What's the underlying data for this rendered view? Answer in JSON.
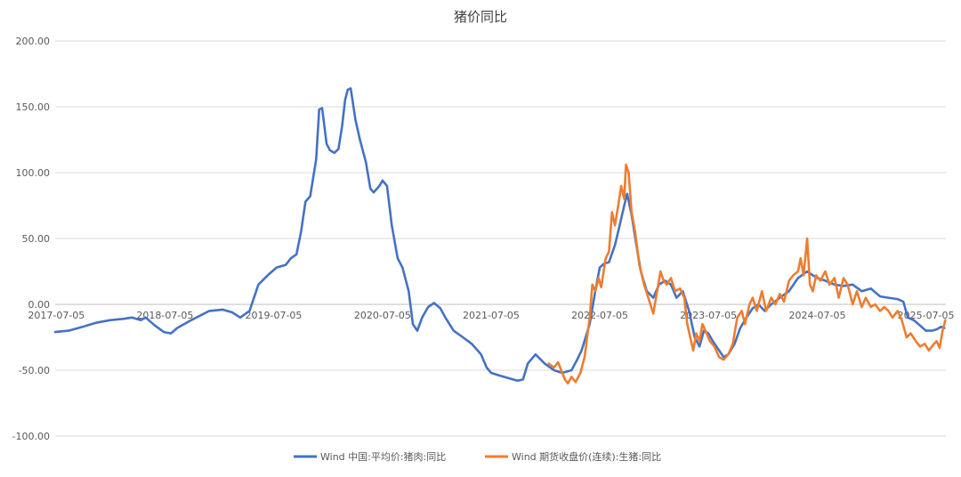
{
  "chart_data": {
    "type": "line",
    "title": "猪价同比",
    "ylim": [
      -100,
      200
    ],
    "y_ticks": [
      {
        "value": 200,
        "label": "200.00"
      },
      {
        "value": 150,
        "label": "150.00"
      },
      {
        "value": 100,
        "label": "100.00"
      },
      {
        "value": 50,
        "label": "50.00"
      },
      {
        "value": 0,
        "label": "0.00"
      },
      {
        "value": -50,
        "label": "-50.00"
      },
      {
        "value": -100,
        "label": "-100.00"
      }
    ],
    "x_range": [
      "2017-07-01",
      "2025-09-10"
    ],
    "x_ticks": [
      "2017-07-05",
      "2018-07-05",
      "2019-07-05",
      "2020-07-05",
      "2021-07-05",
      "2022-07-05",
      "2023-07-05",
      "2024-07-05",
      "2025-07-05"
    ],
    "grid": true,
    "legend_position": "bottom",
    "series": [
      {
        "name": "Wind 中国:平均价:猪肉:同比",
        "color": "#4472C4",
        "points": [
          [
            "2017-07-01",
            -21
          ],
          [
            "2017-08-15",
            -20
          ],
          [
            "2017-10-01",
            -17
          ],
          [
            "2017-11-15",
            -14
          ],
          [
            "2018-01-01",
            -12
          ],
          [
            "2018-02-15",
            -11
          ],
          [
            "2018-03-15",
            -10
          ],
          [
            "2018-04-15",
            -12
          ],
          [
            "2018-05-01",
            -10
          ],
          [
            "2018-06-01",
            -16
          ],
          [
            "2018-07-01",
            -21
          ],
          [
            "2018-07-25",
            -22
          ],
          [
            "2018-08-15",
            -18
          ],
          [
            "2018-10-01",
            -12
          ],
          [
            "2018-12-01",
            -5
          ],
          [
            "2019-01-15",
            -4
          ],
          [
            "2019-02-15",
            -6
          ],
          [
            "2019-03-15",
            -10
          ],
          [
            "2019-04-15",
            -5
          ],
          [
            "2019-05-15",
            15
          ],
          [
            "2019-06-15",
            22
          ],
          [
            "2019-07-15",
            28
          ],
          [
            "2019-08-15",
            30
          ],
          [
            "2019-09-01",
            35
          ],
          [
            "2019-09-20",
            38
          ],
          [
            "2019-10-05",
            55
          ],
          [
            "2019-10-20",
            78
          ],
          [
            "2019-11-05",
            82
          ],
          [
            "2019-11-25",
            110
          ],
          [
            "2019-12-05",
            148
          ],
          [
            "2019-12-15",
            149
          ],
          [
            "2019-12-30",
            122
          ],
          [
            "2020-01-10",
            117
          ],
          [
            "2020-01-25",
            115
          ],
          [
            "2020-02-08",
            118
          ],
          [
            "2020-02-20",
            135
          ],
          [
            "2020-03-01",
            155
          ],
          [
            "2020-03-10",
            163
          ],
          [
            "2020-03-20",
            164
          ],
          [
            "2020-04-05",
            140
          ],
          [
            "2020-04-20",
            125
          ],
          [
            "2020-05-10",
            108
          ],
          [
            "2020-05-25",
            88
          ],
          [
            "2020-06-05",
            85
          ],
          [
            "2020-06-25",
            90
          ],
          [
            "2020-07-05",
            94
          ],
          [
            "2020-07-20",
            90
          ],
          [
            "2020-08-05",
            60
          ],
          [
            "2020-08-25",
            35
          ],
          [
            "2020-09-10",
            28
          ],
          [
            "2020-10-01",
            10
          ],
          [
            "2020-10-15",
            -15
          ],
          [
            "2020-10-30",
            -20
          ],
          [
            "2020-11-15",
            -10
          ],
          [
            "2020-12-05",
            -2
          ],
          [
            "2020-12-25",
            1
          ],
          [
            "2021-01-15",
            -3
          ],
          [
            "2021-02-01",
            -10
          ],
          [
            "2021-03-01",
            -20
          ],
          [
            "2021-04-01",
            -25
          ],
          [
            "2021-05-01",
            -30
          ],
          [
            "2021-06-01",
            -38
          ],
          [
            "2021-06-20",
            -48
          ],
          [
            "2021-07-05",
            -52
          ],
          [
            "2021-08-01",
            -54
          ],
          [
            "2021-09-01",
            -56
          ],
          [
            "2021-10-01",
            -58
          ],
          [
            "2021-10-20",
            -57
          ],
          [
            "2021-11-05",
            -45
          ],
          [
            "2021-12-01",
            -38
          ],
          [
            "2022-01-01",
            -45
          ],
          [
            "2022-02-01",
            -50
          ],
          [
            "2022-03-01",
            -52
          ],
          [
            "2022-04-01",
            -50
          ],
          [
            "2022-04-20",
            -42
          ],
          [
            "2022-05-05",
            -35
          ],
          [
            "2022-06-01",
            -15
          ],
          [
            "2022-06-20",
            10
          ],
          [
            "2022-07-05",
            28
          ],
          [
            "2022-07-20",
            31
          ],
          [
            "2022-08-05",
            32
          ],
          [
            "2022-08-25",
            45
          ],
          [
            "2022-09-10",
            60
          ],
          [
            "2022-09-25",
            75
          ],
          [
            "2022-10-05",
            84
          ],
          [
            "2022-10-20",
            68
          ],
          [
            "2022-11-05",
            45
          ],
          [
            "2022-11-20",
            25
          ],
          [
            "2022-12-10",
            10
          ],
          [
            "2023-01-01",
            5
          ],
          [
            "2023-01-20",
            15
          ],
          [
            "2023-02-10",
            18
          ],
          [
            "2023-03-01",
            15
          ],
          [
            "2023-03-20",
            5
          ],
          [
            "2023-04-10",
            10
          ],
          [
            "2023-05-01",
            -5
          ],
          [
            "2023-05-20",
            -25
          ],
          [
            "2023-06-05",
            -32
          ],
          [
            "2023-06-20",
            -20
          ],
          [
            "2023-07-05",
            -22
          ],
          [
            "2023-07-20",
            -28
          ],
          [
            "2023-08-10",
            -35
          ],
          [
            "2023-08-25",
            -40
          ],
          [
            "2023-09-10",
            -38
          ],
          [
            "2023-10-01",
            -30
          ],
          [
            "2023-10-20",
            -18
          ],
          [
            "2023-11-10",
            -10
          ],
          [
            "2023-12-01",
            -3
          ],
          [
            "2023-12-20",
            0
          ],
          [
            "2024-01-10",
            -5
          ],
          [
            "2024-02-01",
            0
          ],
          [
            "2024-03-01",
            5
          ],
          [
            "2024-04-01",
            10
          ],
          [
            "2024-05-01",
            20
          ],
          [
            "2024-06-01",
            25
          ],
          [
            "2024-06-20",
            22
          ],
          [
            "2024-07-05",
            20
          ],
          [
            "2024-08-01",
            18
          ],
          [
            "2024-09-01",
            15
          ],
          [
            "2024-10-01",
            14
          ],
          [
            "2024-11-01",
            15
          ],
          [
            "2024-12-01",
            10
          ],
          [
            "2025-01-01",
            12
          ],
          [
            "2025-02-01",
            6
          ],
          [
            "2025-03-01",
            5
          ],
          [
            "2025-04-01",
            4
          ],
          [
            "2025-04-20",
            2
          ],
          [
            "2025-05-05",
            -10
          ],
          [
            "2025-05-25",
            -12
          ],
          [
            "2025-06-10",
            -15
          ],
          [
            "2025-07-05",
            -20
          ],
          [
            "2025-07-25",
            -20
          ],
          [
            "2025-08-10",
            -19
          ],
          [
            "2025-08-25",
            -17
          ],
          [
            "2025-09-05",
            -18
          ]
        ]
      },
      {
        "name": "Wind 期货收盘价(连续):生猪:同比",
        "color": "#ED7D31",
        "points": [
          [
            "2022-01-15",
            -45
          ],
          [
            "2022-02-01",
            -48
          ],
          [
            "2022-02-15",
            -44
          ],
          [
            "2022-03-01",
            -52
          ],
          [
            "2022-03-10",
            -57
          ],
          [
            "2022-03-20",
            -60
          ],
          [
            "2022-04-01",
            -55
          ],
          [
            "2022-04-15",
            -59
          ],
          [
            "2022-05-01",
            -52
          ],
          [
            "2022-05-15",
            -40
          ],
          [
            "2022-06-01",
            -10
          ],
          [
            "2022-06-10",
            15
          ],
          [
            "2022-06-20",
            10
          ],
          [
            "2022-07-01",
            20
          ],
          [
            "2022-07-10",
            13
          ],
          [
            "2022-07-25",
            35
          ],
          [
            "2022-08-05",
            40
          ],
          [
            "2022-08-15",
            70
          ],
          [
            "2022-08-25",
            60
          ],
          [
            "2022-09-05",
            75
          ],
          [
            "2022-09-15",
            90
          ],
          [
            "2022-09-25",
            80
          ],
          [
            "2022-10-01",
            106
          ],
          [
            "2022-10-10",
            100
          ],
          [
            "2022-10-20",
            70
          ],
          [
            "2022-11-01",
            55
          ],
          [
            "2022-11-15",
            30
          ],
          [
            "2022-12-01",
            15
          ],
          [
            "2022-12-15",
            5
          ],
          [
            "2023-01-01",
            -7
          ],
          [
            "2023-01-10",
            5
          ],
          [
            "2023-01-25",
            25
          ],
          [
            "2023-02-05",
            18
          ],
          [
            "2023-02-15",
            15
          ],
          [
            "2023-03-01",
            20
          ],
          [
            "2023-03-15",
            10
          ],
          [
            "2023-04-01",
            12
          ],
          [
            "2023-04-15",
            5
          ],
          [
            "2023-04-25",
            -15
          ],
          [
            "2023-05-05",
            -25
          ],
          [
            "2023-05-15",
            -35
          ],
          [
            "2023-05-25",
            -22
          ],
          [
            "2023-06-05",
            -28
          ],
          [
            "2023-06-15",
            -15
          ],
          [
            "2023-06-25",
            -20
          ],
          [
            "2023-07-10",
            -28
          ],
          [
            "2023-07-25",
            -32
          ],
          [
            "2023-08-10",
            -40
          ],
          [
            "2023-08-25",
            -42
          ],
          [
            "2023-09-10",
            -38
          ],
          [
            "2023-09-25",
            -30
          ],
          [
            "2023-10-10",
            -10
          ],
          [
            "2023-10-25",
            -5
          ],
          [
            "2023-11-05",
            -15
          ],
          [
            "2023-11-20",
            0
          ],
          [
            "2023-12-01",
            5
          ],
          [
            "2023-12-15",
            -5
          ],
          [
            "2024-01-01",
            10
          ],
          [
            "2024-01-15",
            -5
          ],
          [
            "2024-02-01",
            5
          ],
          [
            "2024-02-15",
            0
          ],
          [
            "2024-03-01",
            8
          ],
          [
            "2024-03-15",
            2
          ],
          [
            "2024-04-01",
            18
          ],
          [
            "2024-04-15",
            22
          ],
          [
            "2024-05-01",
            25
          ],
          [
            "2024-05-10",
            35
          ],
          [
            "2024-05-20",
            22
          ],
          [
            "2024-06-01",
            50
          ],
          [
            "2024-06-10",
            15
          ],
          [
            "2024-06-20",
            10
          ],
          [
            "2024-07-01",
            22
          ],
          [
            "2024-07-15",
            18
          ],
          [
            "2024-08-01",
            25
          ],
          [
            "2024-08-15",
            15
          ],
          [
            "2024-09-01",
            20
          ],
          [
            "2024-09-15",
            5
          ],
          [
            "2024-10-01",
            20
          ],
          [
            "2024-10-15",
            15
          ],
          [
            "2024-11-01",
            0
          ],
          [
            "2024-11-15",
            10
          ],
          [
            "2024-12-01",
            -2
          ],
          [
            "2024-12-15",
            5
          ],
          [
            "2025-01-01",
            -2
          ],
          [
            "2025-01-15",
            0
          ],
          [
            "2025-02-01",
            -5
          ],
          [
            "2025-02-15",
            -2
          ],
          [
            "2025-03-01",
            -5
          ],
          [
            "2025-03-15",
            -10
          ],
          [
            "2025-04-01",
            -5
          ],
          [
            "2025-04-15",
            -12
          ],
          [
            "2025-05-01",
            -25
          ],
          [
            "2025-05-15",
            -22
          ],
          [
            "2025-06-01",
            -28
          ],
          [
            "2025-06-15",
            -32
          ],
          [
            "2025-07-01",
            -30
          ],
          [
            "2025-07-15",
            -35
          ],
          [
            "2025-08-01",
            -30
          ],
          [
            "2025-08-10",
            -28
          ],
          [
            "2025-08-20",
            -33
          ],
          [
            "2025-08-30",
            -20
          ],
          [
            "2025-09-05",
            -15
          ],
          [
            "2025-09-08",
            -12
          ]
        ]
      }
    ]
  }
}
